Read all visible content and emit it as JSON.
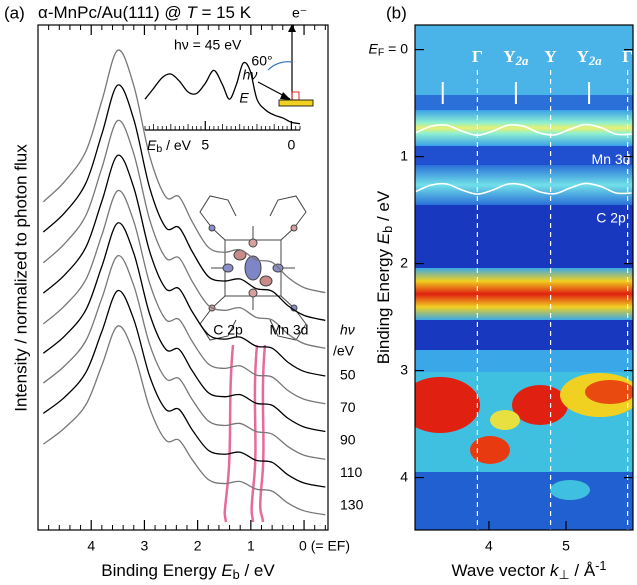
{
  "chart_data": [
    {
      "type": "line",
      "panel": "(a)",
      "title": [
        "α-MnPc/Au(111) @ ",
        "T",
        " = 15 K"
      ],
      "xlabel": [
        "Binding Energy  ",
        "E",
        "b",
        " / eV"
      ],
      "ylabel": "Intensity / normalized to photon flux",
      "x": [
        4.9,
        4.5,
        4.1,
        3.8,
        3.5,
        3.2,
        2.9,
        2.6,
        2.35,
        2.1,
        1.8,
        1.5,
        1.2,
        0.9,
        0.6,
        0.3,
        0,
        -0.4
      ],
      "xlim": [
        5.0,
        -0.45
      ],
      "xticks": [
        4,
        3,
        2,
        1,
        {
          "value": 0,
          "label": "0 (= EF)"
        }
      ],
      "ylim": [
        0,
        100
      ],
      "series": [
        {
          "color": "#777777",
          "values": [
            65,
            69,
            75,
            85,
            95,
            88,
            74,
            66,
            66,
            61,
            56,
            55,
            55.5,
            53.5,
            53,
            50,
            48,
            47
          ]
        },
        {
          "color": "#000000",
          "values": [
            59,
            62.8,
            68.7,
            78.4,
            88.1,
            81.3,
            67.7,
            59.9,
            59.9,
            55.1,
            50.2,
            49.3,
            49.7,
            47.8,
            47.3,
            44.4,
            42.5,
            41.5
          ]
        },
        {
          "color": "#777777",
          "values": [
            52.9,
            56.7,
            62.3,
            71.7,
            81.1,
            74.5,
            61.4,
            53.9,
            53.9,
            49.2,
            44.5,
            43.5,
            44,
            42.1,
            41.6,
            38.8,
            36.9,
            36
          ]
        },
        {
          "color": "#000000",
          "values": [
            46.9,
            50.5,
            56,
            65.1,
            74.2,
            67.8,
            55.1,
            47.8,
            47.8,
            43.2,
            38.7,
            37.8,
            38.2,
            36.4,
            36,
            33.2,
            31.4,
            30.5
          ]
        },
        {
          "color": "#777777",
          "values": [
            40.8,
            44.4,
            49.6,
            58.4,
            67.2,
            61.1,
            48.8,
            41.7,
            41.7,
            37.3,
            32.9,
            32,
            32.5,
            30.7,
            30.3,
            27.6,
            25.9,
            25
          ]
        },
        {
          "color": "#000000",
          "values": [
            35,
            38.4,
            43.6,
            52.2,
            60.8,
            54.8,
            42.7,
            35.8,
            35.8,
            31.5,
            27.2,
            26.4,
            26.8,
            25.1,
            24.7,
            22.1,
            20.4,
            19.5
          ]
        },
        {
          "color": "#777777",
          "values": [
            29.1,
            32.5,
            37.5,
            45.9,
            54.3,
            48.4,
            36.7,
            30,
            30,
            25.8,
            21.6,
            20.7,
            21.1,
            19.5,
            19,
            16.5,
            14.8,
            14
          ]
        },
        {
          "color": "#000000",
          "values": [
            23.1,
            26.3,
            31.2,
            39.3,
            47.4,
            41.7,
            30.4,
            23.9,
            23.9,
            19.8,
            15.8,
            15,
            15.4,
            13.8,
            13.4,
            10.9,
            9.3,
            8.5
          ]
        },
        {
          "color": "#777777",
          "values": [
            17,
            20.2,
            24.8,
            32.6,
            40.4,
            35,
            24.1,
            17.8,
            17.8,
            13.9,
            10,
            9.2,
            9.6,
            8.1,
            7.7,
            5.3,
            3.8,
            3
          ]
        }
      ],
      "hv_label": [
        "hν",
        "/eV"
      ],
      "hv_values": [
        50,
        70,
        90,
        110,
        130
      ],
      "annotations": [
        "C 2p",
        "Mn 3d"
      ],
      "inset": {
        "title": "hν = 45 eV",
        "x": [
          8.5,
          8,
          7.5,
          7,
          6.5,
          6,
          5.5,
          5,
          4.5,
          4,
          3.6,
          3.2,
          2.8,
          2.4,
          2,
          1.5,
          1,
          0.5,
          0,
          -0.5
        ],
        "values": [
          40,
          55,
          70,
          75,
          65,
          50,
          48,
          62,
          80,
          60,
          40,
          60,
          90,
          80,
          40,
          25,
          18,
          14,
          8,
          6
        ],
        "xlim": [
          8.5,
          -0.5
        ],
        "ylim": [
          0,
          100
        ],
        "xticks": [
          5,
          0
        ],
        "xlabel": [
          "E",
          "b",
          " / eV"
        ],
        "geometry_labels": [
          "e⁻",
          "60°",
          "hν",
          "E"
        ]
      }
    },
    {
      "type": "heatmap",
      "panel": "(b)",
      "xlabel": [
        "Wave vector  ",
        "k",
        "⊥",
        " / Å",
        "-1"
      ],
      "ylabel": [
        "Binding Energy  ",
        "E",
        "b",
        " / eV"
      ],
      "xlim": [
        3.04,
        5.87
      ],
      "ylim": [
        -0.23,
        4.49
      ],
      "xticks": [
        4,
        5
      ],
      "yticks": [
        {
          "value": 0,
          "label": [
            "E",
            "F",
            " = 0"
          ]
        },
        1,
        2,
        3,
        4
      ],
      "x": [
        3.05,
        3.25,
        3.45,
        3.65,
        3.85,
        4.05,
        4.25,
        4.45,
        4.65,
        4.85,
        5.05,
        5.25,
        5.45,
        5.65,
        5.85
      ],
      "series": [
        {
          "name": "Mn 3d",
          "color": "#ffffff",
          "values": [
            0.777,
            0.716,
            0.706,
            0.762,
            0.8,
            0.762,
            0.706,
            0.716,
            0.777,
            0.797,
            0.745,
            0.701,
            0.728,
            0.79,
            0.79
          ]
        },
        {
          "name": "C 2p",
          "color": "#ffffff",
          "values": [
            1.327,
            1.266,
            1.256,
            1.312,
            1.35,
            1.312,
            1.256,
            1.266,
            1.327,
            1.347,
            1.295,
            1.251,
            1.278,
            1.34,
            1.34
          ]
        }
      ],
      "symmetry_points": [
        {
          "label": "Γ",
          "x": 3.85,
          "line": true
        },
        {
          "label": "Y",
          "sub": "2a",
          "x": 4.35,
          "line": false
        },
        {
          "label": "Y",
          "x": 4.8,
          "line": true
        },
        {
          "label": "Y",
          "sub": "2a",
          "x": 5.3,
          "line": false
        },
        {
          "label": "Γ",
          "x": 5.8,
          "line": true
        }
      ],
      "marks_x": [
        3.4,
        4.35,
        5.3
      ]
    }
  ]
}
